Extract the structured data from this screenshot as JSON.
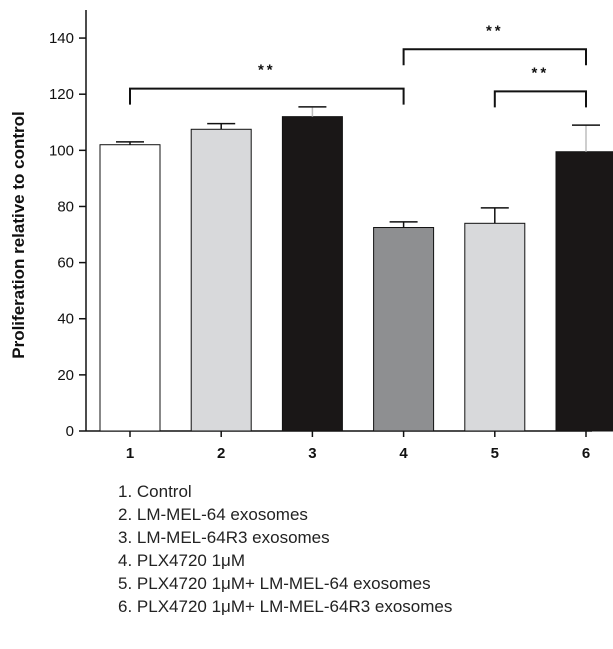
{
  "chart_data": {
    "type": "bar",
    "categories": [
      "1",
      "2",
      "3",
      "4",
      "5",
      "6"
    ],
    "values": [
      102,
      107.5,
      112,
      72.5,
      74,
      99.5
    ],
    "errors": [
      1,
      2,
      3.5,
      2,
      5.5,
      9.5
    ],
    "bar_colors": [
      "#ffffff",
      "#d8d9db",
      "#1a1717",
      "#8e8f91",
      "#d8d9db",
      "#1a1717"
    ],
    "xlabel": "",
    "ylabel": "Proliferation relative to control",
    "ylim": [
      0,
      150
    ],
    "yticks": [
      "0",
      "20",
      "40",
      "60",
      "80",
      "100",
      "120",
      "140"
    ],
    "grid": false,
    "significance": [
      {
        "from": "1",
        "to": "4",
        "level": 122,
        "label": "**"
      },
      {
        "from": "4",
        "to": "6",
        "level": 136,
        "label": "**"
      },
      {
        "from": "5",
        "to": "6",
        "level": 121,
        "label": "**"
      }
    ]
  },
  "legend": [
    "1. Control",
    "2. LM-MEL-64 exosomes",
    "3. LM-MEL-64R3 exosomes",
    "4. PLX4720 1μM",
    "5. PLX4720 1μM+ LM-MEL-64 exosomes",
    "6. PLX4720 1μM+ LM-MEL-64R3 exosomes"
  ]
}
